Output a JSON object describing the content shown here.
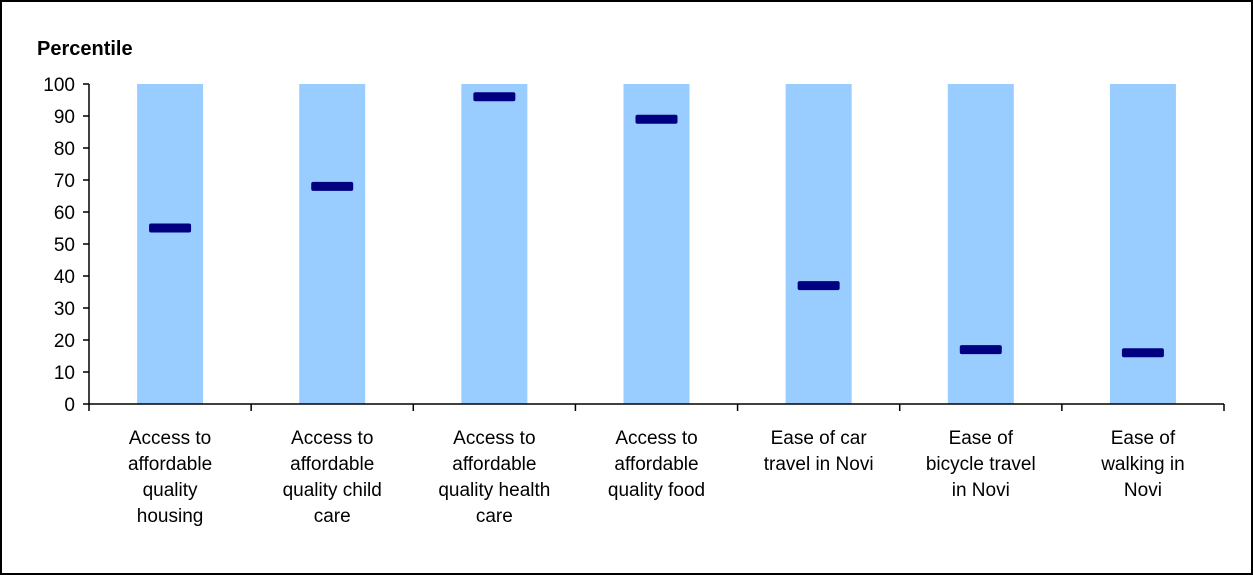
{
  "chart_data": {
    "type": "bar",
    "ylabel": "Percentile",
    "ylim": [
      0,
      100
    ],
    "yticks": [
      "0",
      "10",
      "20",
      "30",
      "40",
      "50",
      "60",
      "70",
      "80",
      "90",
      "100"
    ],
    "categories": [
      [
        "Access to",
        "affordable",
        "quality",
        "housing"
      ],
      [
        "Access to",
        "affordable",
        "quality child",
        "care"
      ],
      [
        "Access to",
        "affordable",
        "quality health",
        "care"
      ],
      [
        "Access to",
        "affordable",
        "quality food"
      ],
      [
        "Ease of car",
        "travel in Novi"
      ],
      [
        "Ease of",
        "bicycle travel",
        "in Novi"
      ],
      [
        "Ease of",
        "walking in",
        "Novi"
      ]
    ],
    "range_max": [
      100,
      100,
      100,
      100,
      100,
      100,
      100
    ],
    "values": [
      55,
      68,
      96,
      89,
      37,
      17,
      16
    ],
    "colors": {
      "range_bar": "#99ccff",
      "marker": "#000080"
    },
    "grid": false,
    "legend": "none"
  }
}
